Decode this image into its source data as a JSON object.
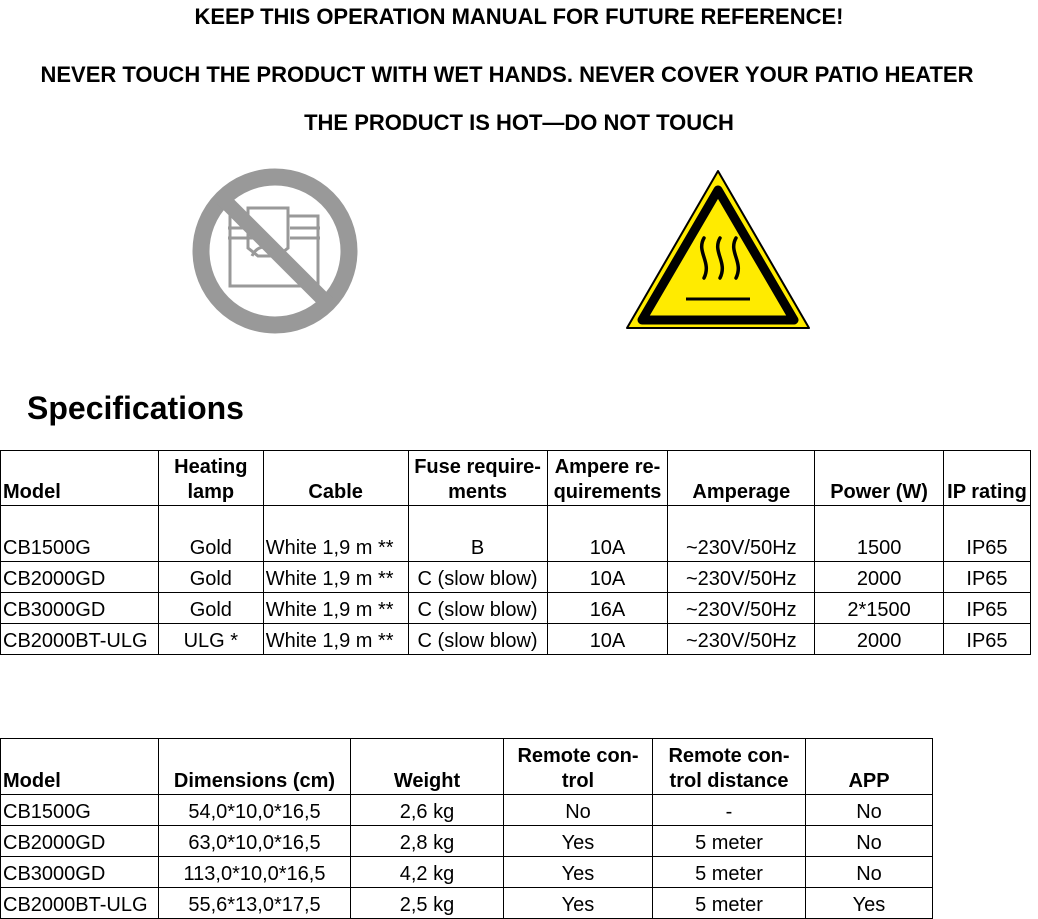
{
  "notices": [
    "KEEP THIS OPERATION MANUAL FOR FUTURE REFERENCE!",
    "NEVER TOUCH THE PRODUCT WITH WET HANDS. NEVER COVER YOUR PATIO HEATER",
    "THE PRODUCT IS HOT—DO NOT TOUCH"
  ],
  "icons": {
    "prohibition": "do-not-cover-icon",
    "warning": "hot-surface-warning-icon",
    "warning_color": "#FFEB00",
    "prohibition_color": "#999999"
  },
  "section_title": "Specifications",
  "table1": {
    "headers": [
      "Model",
      "Heating lamp",
      "Cable",
      "Fuse require-ments",
      "Ampere re-quirements",
      "Amperage",
      "Power (W)",
      "IP rating"
    ],
    "rows": [
      [
        "CB1500G",
        "Gold",
        "White 1,9 m **",
        "B",
        "10A",
        "~230V/50Hz",
        "1500",
        "IP65"
      ],
      [
        "CB2000GD",
        "Gold",
        "White 1,9 m **",
        "C (slow blow)",
        "10A",
        "~230V/50Hz",
        "2000",
        "IP65"
      ],
      [
        "CB3000GD",
        "Gold",
        "White 1,9 m **",
        "C (slow blow)",
        "16A",
        "~230V/50Hz",
        "2*1500",
        "IP65"
      ],
      [
        "CB2000BT-ULG",
        "ULG *",
        "White 1,9 m **",
        "C (slow blow)",
        "10A",
        "~230V/50Hz",
        "2000",
        "IP65"
      ]
    ]
  },
  "table2": {
    "headers": [
      "Model",
      "Dimensions (cm)",
      "Weight",
      "Remote con-trol",
      "Remote con-trol distance",
      "APP"
    ],
    "rows": [
      [
        "CB1500G",
        "54,0*10,0*16,5",
        "2,6 kg",
        "No",
        "-",
        "No"
      ],
      [
        "CB2000GD",
        "63,0*10,0*16,5",
        "2,8 kg",
        "Yes",
        "5 meter",
        "No"
      ],
      [
        "CB3000GD",
        "113,0*10,0*16,5",
        "4,2 kg",
        "Yes",
        "5 meter",
        "No"
      ],
      [
        "CB2000BT-ULG",
        "55,6*13,0*17,5",
        "2,5 kg",
        "Yes",
        "5 meter",
        "Yes"
      ]
    ]
  }
}
